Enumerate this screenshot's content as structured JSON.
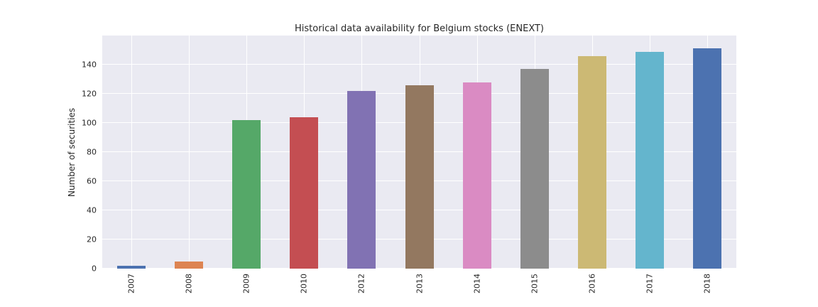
{
  "figure": {
    "title": "Historical data availability for Belgium stocks (ENEXT)",
    "ylabel": "Number of securities"
  },
  "chart_data": {
    "type": "bar",
    "title": "Historical data availability for Belgium stocks (ENEXT)",
    "xlabel": "",
    "ylabel": "Number of securities",
    "categories": [
      "2007",
      "2008",
      "2009",
      "2010",
      "2012",
      "2013",
      "2014",
      "2015",
      "2016",
      "2017",
      "2018"
    ],
    "values": [
      2,
      5,
      102,
      104,
      122,
      126,
      128,
      137,
      146,
      149,
      151
    ],
    "bar_colors": [
      "#4C72B0",
      "#DD8452",
      "#55A868",
      "#C44E52",
      "#8172B3",
      "#937860",
      "#DA8BC3",
      "#8C8C8C",
      "#CCB974",
      "#64B5CD",
      "#4C72B0"
    ],
    "ylim": [
      0,
      160
    ],
    "yticks": [
      0,
      20,
      40,
      60,
      80,
      100,
      120,
      140
    ],
    "grid": true,
    "grid_color": "#FFFFFF",
    "plot_background": "#EAEAF2",
    "legend_position": "none"
  }
}
